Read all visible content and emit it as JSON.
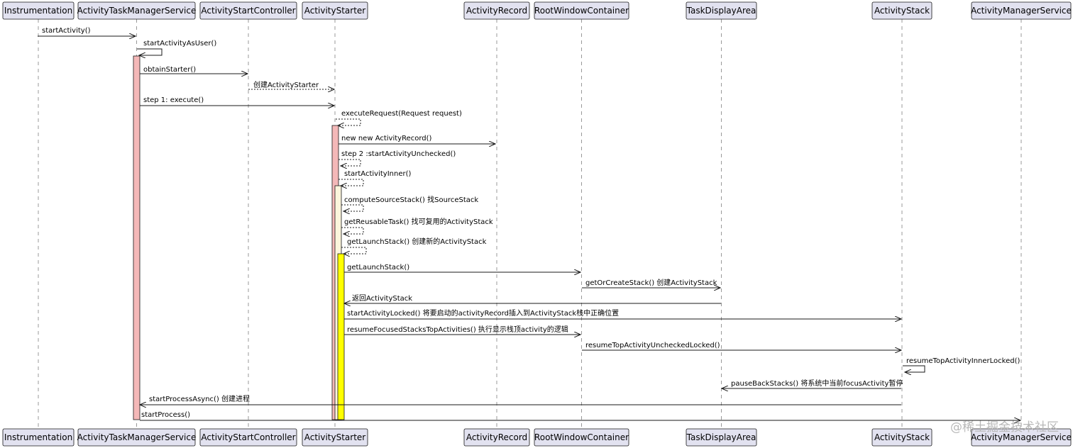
{
  "participants": [
    "Instrumentation",
    "ActivityTaskManagerService",
    "ActivityStartController",
    "ActivityStarter",
    "ActivityRecord",
    "RootWindowContainer",
    "TaskDisplayArea",
    "ActivityStack",
    "ActivityManagerService"
  ],
  "messages": [
    "startActivity()",
    "startActivityAsUser()",
    "obtainStarter()",
    "创建ActivityStarter",
    "step 1: execute()",
    "executeRequest(Request request)",
    "new new ActivityRecord()",
    "step 2 :startActivityUnchecked()",
    "startActivityInner()",
    "computeSourceStack() 找SourceStack",
    "getReusableTask() 找可复用的ActivityStack",
    "getLaunchStack() 创建新的ActivityStack",
    "getLaunchStack()",
    "getOrCreateStack() 创建ActivityStack",
    "返回ActivityStack",
    "startActivityLocked() 将要启动的activityRecord插入到ActivityStack栈中正确位置",
    "resumeFocusedStacksTopActivities() 执行显示栈顶activity的逻辑",
    "resumeTopActivityUncheckedLocked()",
    "resumeTopActivityInnerLocked()",
    "pauseBackStacks() 将系统中当前focusActivity暂停",
    "startProcessAsync() 创建进程",
    "startProcess()"
  ],
  "watermark": "@稀土掘金技术社区"
}
